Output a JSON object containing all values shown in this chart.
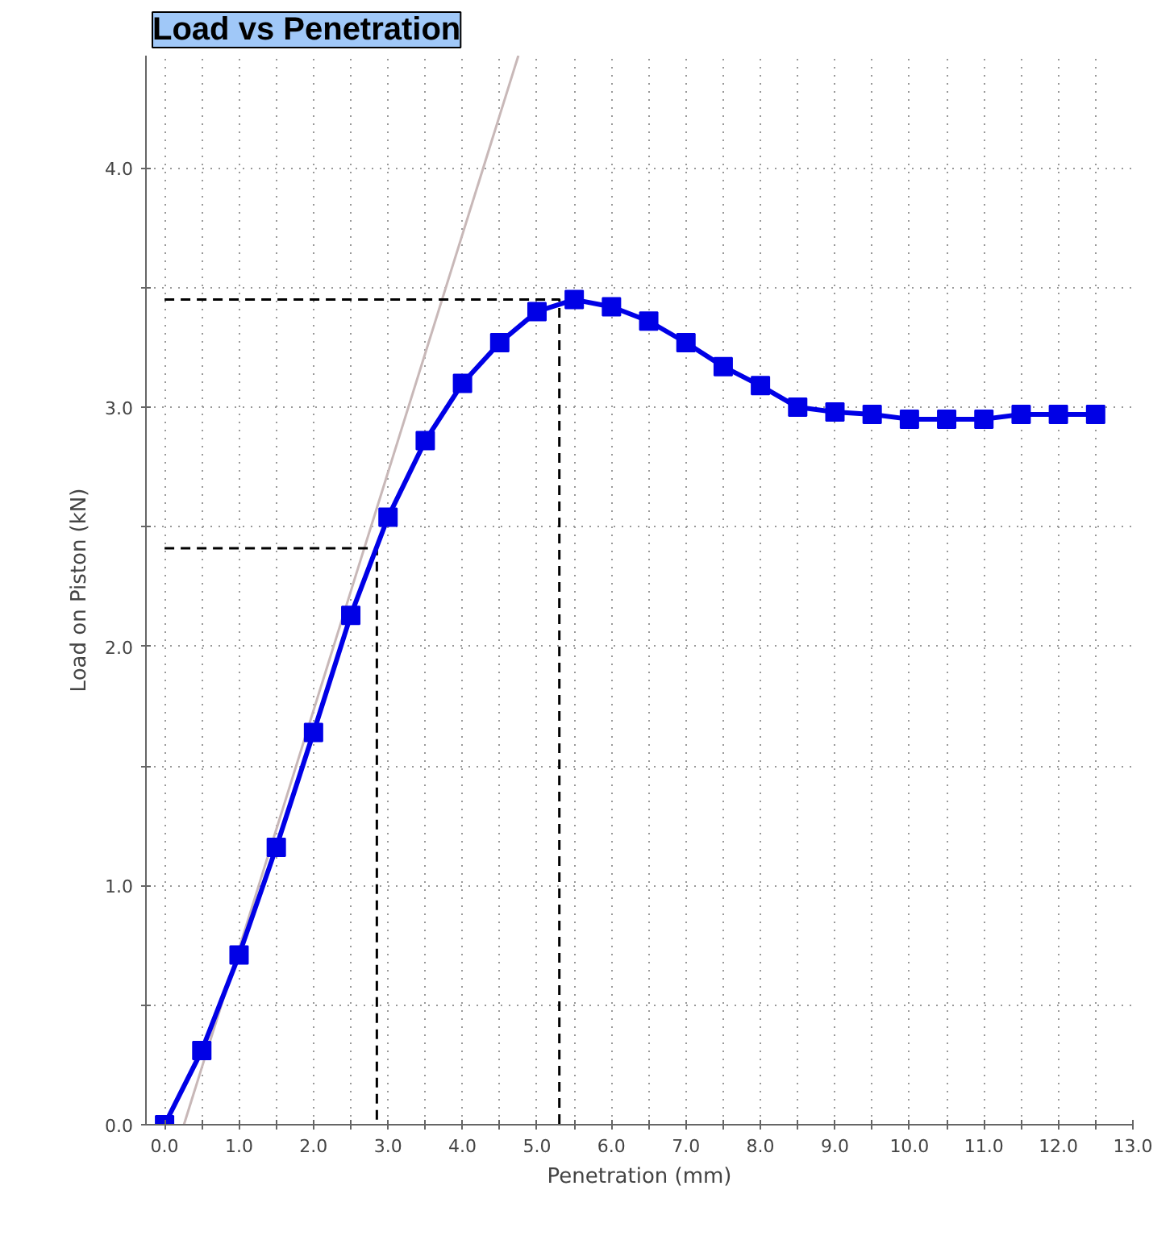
{
  "chart_data": {
    "type": "line",
    "title": "Load vs Penetration",
    "xlabel": "Penetration (mm)",
    "ylabel": "Load on Piston (kN)",
    "xlim": [
      -0.25,
      13.0
    ],
    "ylim": [
      0,
      4.47
    ],
    "xticks": [
      {
        "value": 0,
        "label": "0.0"
      },
      {
        "value": 0.5,
        "label": null
      },
      {
        "value": 1,
        "label": "1.0"
      },
      {
        "value": 1.5,
        "label": null
      },
      {
        "value": 2,
        "label": "2.0"
      },
      {
        "value": 2.5,
        "label": null
      },
      {
        "value": 3,
        "label": "3.0"
      },
      {
        "value": 3.5,
        "label": null
      },
      {
        "value": 4,
        "label": "4.0"
      },
      {
        "value": 4.5,
        "label": null
      },
      {
        "value": 5,
        "label": "5.0"
      },
      {
        "value": 5.5,
        "label": null
      },
      {
        "value": 6,
        "label": "6.0"
      },
      {
        "value": 6.5,
        "label": null
      },
      {
        "value": 7,
        "label": "7.0"
      },
      {
        "value": 7.5,
        "label": null
      },
      {
        "value": 8,
        "label": "8.0"
      },
      {
        "value": 8.5,
        "label": null
      },
      {
        "value": 9,
        "label": "9.0"
      },
      {
        "value": 9.5,
        "label": null
      },
      {
        "value": 10,
        "label": "10.0"
      },
      {
        "value": 10.5,
        "label": null
      },
      {
        "value": 11,
        "label": "11.0"
      },
      {
        "value": 11.5,
        "label": null
      },
      {
        "value": 12,
        "label": "12.0"
      },
      {
        "value": 12.5,
        "label": null
      },
      {
        "value": 13,
        "label": "13.0"
      }
    ],
    "yticks": [
      {
        "value": 0,
        "label": "0.0"
      },
      {
        "value": 0.5,
        "label": null
      },
      {
        "value": 1,
        "label": "1.0"
      },
      {
        "value": 1.5,
        "label": null
      },
      {
        "value": 2,
        "label": "2.0"
      },
      {
        "value": 2.5,
        "label": null
      },
      {
        "value": 3,
        "label": "3.0"
      },
      {
        "value": 3.5,
        "label": null
      },
      {
        "value": 4,
        "label": "4.0"
      }
    ],
    "grid": true,
    "series": [
      {
        "color": "#c8b8b8",
        "marker": "none",
        "line_style": "solid",
        "x": [
          0.26,
          4.75
        ],
        "values": [
          0,
          4.47
        ]
      },
      {
        "color": "#000000",
        "marker": "none",
        "line_style": "dashed",
        "x": [
          0,
          5.3,
          5.3
        ],
        "values": [
          3.45,
          3.45,
          0
        ]
      },
      {
        "color": "#000000",
        "marker": "none",
        "line_style": "dashed",
        "x": [
          0,
          2.85,
          2.85
        ],
        "values": [
          2.41,
          2.41,
          0
        ]
      },
      {
        "color": "#0000e6",
        "marker": "square",
        "line_style": "solid",
        "x": [
          0,
          0.5,
          1,
          1.5,
          2,
          2.5,
          3,
          3.5,
          4,
          4.5,
          5,
          5.5,
          6,
          6.5,
          7,
          7.5,
          8,
          8.5,
          9,
          9.5,
          10,
          10.5,
          11,
          11.5,
          12,
          12.5
        ],
        "values": [
          0.0,
          0.31,
          0.71,
          1.16,
          1.64,
          2.13,
          2.54,
          2.86,
          3.1,
          3.27,
          3.4,
          3.45,
          3.42,
          3.36,
          3.27,
          3.17,
          3.09,
          3.0,
          2.98,
          2.97,
          2.95,
          2.95,
          2.95,
          2.97,
          2.97,
          2.97
        ]
      }
    ]
  }
}
